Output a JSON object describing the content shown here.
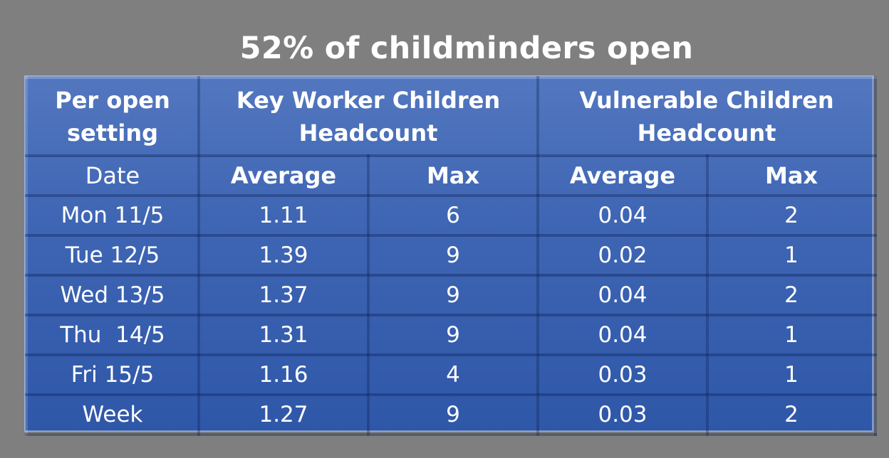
{
  "title": "52% of childminders open",
  "table": {
    "header_row1": {
      "setting": "Per open setting",
      "key_worker": "Key Worker Children Headcount",
      "vulnerable": "Vulnerable Children Headcount"
    },
    "header_row2": {
      "date": "Date",
      "kw_average": "Average",
      "kw_max": "Max",
      "vul_average": "Average",
      "vul_max": "Max"
    },
    "rows": [
      {
        "date": "Mon 11/5",
        "kw_average": "1.11",
        "kw_max": "6",
        "vul_average": "0.04",
        "vul_max": "2"
      },
      {
        "date": "Tue 12/5",
        "kw_average": "1.39",
        "kw_max": "9",
        "vul_average": "0.02",
        "vul_max": "1"
      },
      {
        "date": "Wed 13/5",
        "kw_average": "1.37",
        "kw_max": "9",
        "vul_average": "0.04",
        "vul_max": "2"
      },
      {
        "date": "Thu  14/5",
        "kw_average": "1.31",
        "kw_max": "9",
        "vul_average": "0.04",
        "vul_max": "1"
      },
      {
        "date": "Fri 15/5",
        "kw_average": "1.16",
        "kw_max": "4",
        "vul_average": "0.03",
        "vul_max": "1"
      },
      {
        "date": "Week",
        "kw_average": "1.27",
        "kw_max": "9",
        "vul_average": "0.03",
        "vul_max": "2"
      }
    ]
  },
  "colors": {
    "background": "#7f7f7f",
    "table_fill": "#3f66b4",
    "text": "#ffffff"
  }
}
